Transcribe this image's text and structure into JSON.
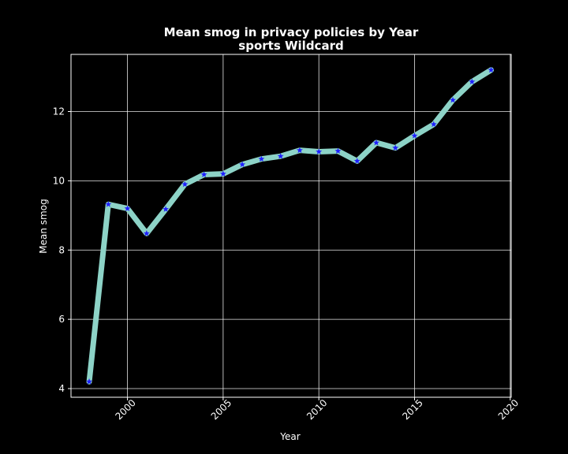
{
  "chart_data": {
    "type": "line",
    "title": "Mean smog in privacy policies by Year",
    "subtitle": "sports Wildcard",
    "xlabel": "Year",
    "ylabel": "Mean smog",
    "x": [
      1998,
      1999,
      2000,
      2001,
      2002,
      2003,
      2004,
      2005,
      2006,
      2007,
      2008,
      2009,
      2010,
      2011,
      2012,
      2013,
      2014,
      2015,
      2016,
      2017,
      2018,
      2019
    ],
    "series": [
      {
        "values": [
          4.2,
          9.32,
          9.2,
          8.48,
          9.18,
          9.9,
          10.18,
          10.2,
          10.47,
          10.63,
          10.71,
          10.88,
          10.84,
          10.86,
          10.57,
          11.1,
          10.95,
          11.3,
          11.63,
          12.33,
          12.86,
          13.2
        ]
      }
    ],
    "xlim": [
      1997.05,
      2020.05
    ],
    "ylim": [
      3.75,
      13.65
    ],
    "xticks": [
      2000,
      2005,
      2010,
      2015,
      2020
    ],
    "yticks": [
      4,
      6,
      8,
      10,
      12
    ],
    "grid": true,
    "colors": {
      "background": "#000000",
      "line": "#8dd3c7",
      "marker": "#1f1fff",
      "grid": "#ffffff",
      "text": "#ffffff"
    },
    "marker": "star"
  }
}
